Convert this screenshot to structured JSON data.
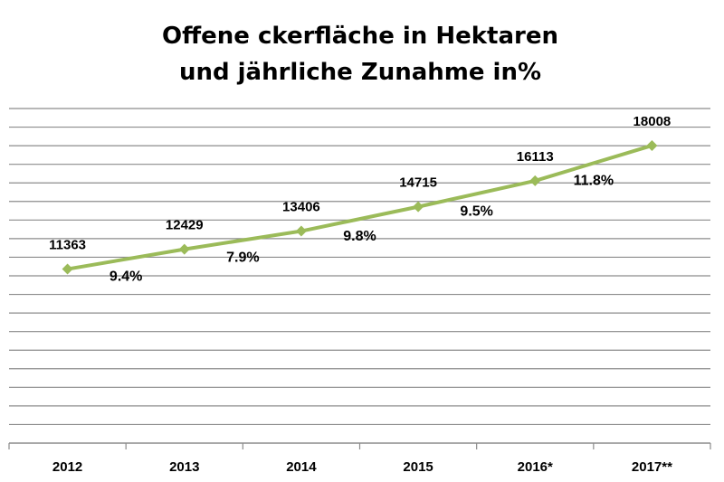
{
  "chart_data": {
    "type": "line",
    "title_lines": [
      "Offene ckerfläche in Hektaren",
      "und jährliche Zunahme in%"
    ],
    "categories": [
      "2012",
      "2013",
      "2014",
      "2015",
      "2016*",
      "2017**"
    ],
    "series": [
      {
        "values": [
          11363,
          12429,
          13406,
          14715,
          16113,
          18008
        ]
      }
    ],
    "value_labels": [
      "11363",
      "12429",
      "13406",
      "14715",
      "16113",
      "18008"
    ],
    "growth_labels": [
      "9.4%",
      "7.9%",
      "9.8%",
      "9.5%",
      "11.8%"
    ],
    "xlabel": "",
    "ylabel": "",
    "ylim": [
      2000,
      20000
    ],
    "grid_step": 1000,
    "grid": true,
    "legend": "none",
    "colors": {
      "line": "#9bbb59",
      "grid": "#8c8c8c",
      "axis": "#8c8c8c"
    }
  }
}
